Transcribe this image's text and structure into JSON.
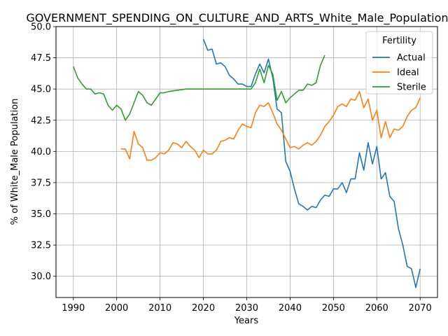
{
  "chart_data": {
    "type": "line",
    "title": "GOVERNMENT_SPENDING_ON_CULTURE_AND_ARTS_White_Male_Population_so",
    "xlabel": "Years",
    "ylabel": "% of White_Male Population",
    "xlim": [
      1986,
      2074
    ],
    "ylim": [
      28.3,
      50.0
    ],
    "xticks": [
      1990,
      2000,
      2010,
      2020,
      2030,
      2040,
      2050,
      2060,
      2070
    ],
    "yticks": [
      30.0,
      32.5,
      35.0,
      37.5,
      40.0,
      42.5,
      45.0,
      47.5,
      50.0
    ],
    "grid": true,
    "legend": {
      "title": "Fertility",
      "placement": "top-right"
    },
    "series": [
      {
        "name": "Actual",
        "color": "#1f77b4",
        "x": [
          2020,
          2021,
          2022,
          2023,
          2024,
          2025,
          2026,
          2027,
          2028,
          2029,
          2030,
          2031,
          2032,
          2033,
          2034,
          2035,
          2036,
          2037,
          2038,
          2039,
          2040,
          2041,
          2042,
          2043,
          2044,
          2045,
          2046,
          2047,
          2048,
          2049,
          2050,
          2051,
          2052,
          2053,
          2054,
          2055,
          2056,
          2057,
          2058,
          2059,
          2060,
          2061,
          2062,
          2063,
          2064,
          2065,
          2066,
          2067,
          2068,
          2069,
          2070
        ],
        "values": [
          49.0,
          48.1,
          48.2,
          47.0,
          47.1,
          46.8,
          46.1,
          45.8,
          45.4,
          45.4,
          45.2,
          45.2,
          46.2,
          47.0,
          46.3,
          47.4,
          45.9,
          43.4,
          43.1,
          39.2,
          38.4,
          37.0,
          35.8,
          35.6,
          35.3,
          35.6,
          35.5,
          36.1,
          36.5,
          36.4,
          37.0,
          37.0,
          37.5,
          36.7,
          37.8,
          37.8,
          39.9,
          38.5,
          40.7,
          39.0,
          40.4,
          37.8,
          38.3,
          36.4,
          36.0,
          33.8,
          32.5,
          30.8,
          30.6,
          29.1,
          30.6
        ]
      },
      {
        "name": "Ideal",
        "color": "#ff7f0e",
        "x": [
          2001,
          2002,
          2003,
          2004,
          2005,
          2006,
          2007,
          2008,
          2009,
          2010,
          2011,
          2012,
          2013,
          2014,
          2015,
          2016,
          2017,
          2018,
          2019,
          2020,
          2021,
          2022,
          2023,
          2024,
          2025,
          2026,
          2027,
          2028,
          2029,
          2030,
          2031,
          2032,
          2033,
          2034,
          2035,
          2036,
          2037,
          2038,
          2039,
          2040,
          2041,
          2042,
          2043,
          2044,
          2045,
          2046,
          2047,
          2048,
          2049,
          2050,
          2051,
          2052,
          2053,
          2054,
          2055,
          2056,
          2057,
          2058,
          2059,
          2060,
          2061,
          2062,
          2063,
          2064,
          2065,
          2066,
          2067,
          2068,
          2069,
          2070
        ],
        "values": [
          40.2,
          40.2,
          39.4,
          41.6,
          40.6,
          40.3,
          39.3,
          39.3,
          39.5,
          39.9,
          39.8,
          40.1,
          40.7,
          40.6,
          40.3,
          40.8,
          40.4,
          40.1,
          39.5,
          40.1,
          39.8,
          39.8,
          40.1,
          40.8,
          40.9,
          41.1,
          41.0,
          41.7,
          42.2,
          42.0,
          41.9,
          43.1,
          43.7,
          43.6,
          43.9,
          43.1,
          42.2,
          41.7,
          41.0,
          40.3,
          40.4,
          40.2,
          40.5,
          40.7,
          40.5,
          40.8,
          41.3,
          42.0,
          42.4,
          42.9,
          43.6,
          43.8,
          43.6,
          44.2,
          44.1,
          44.8,
          43.5,
          44.2,
          42.5,
          43.3,
          41.1,
          42.4,
          41.1,
          41.8,
          41.7,
          42.0,
          42.8,
          43.3,
          43.5,
          44.3
        ]
      },
      {
        "name": "Sterile",
        "color": "#2ca02c",
        "x": [
          1990,
          1991,
          1992,
          1993,
          1994,
          1995,
          1996,
          1997,
          1998,
          1999,
          2000,
          2001,
          2002,
          2003,
          2004,
          2005,
          2006,
          2007,
          2008,
          2009,
          2010,
          2011,
          2012,
          2013,
          2014,
          2015,
          2016,
          2017,
          2018,
          2019,
          2020,
          2021,
          2022,
          2023,
          2024,
          2025,
          2026,
          2027,
          2028,
          2029,
          2030,
          2031,
          2032,
          2033,
          2034,
          2035,
          2036,
          2037,
          2038,
          2039,
          2040,
          2041,
          2042,
          2043,
          2044,
          2045,
          2046,
          2047,
          2048
        ],
        "values": [
          46.8,
          45.9,
          45.4,
          45.0,
          45.0,
          44.6,
          44.7,
          44.6,
          43.7,
          43.3,
          43.7,
          43.4,
          42.5,
          43.0,
          43.9,
          44.8,
          44.5,
          43.9,
          43.7,
          44.2,
          44.7,
          44.7,
          44.8,
          44.85,
          44.9,
          44.95,
          45.0,
          45.0,
          45.0,
          45.0,
          45.0,
          45.0,
          45.0,
          45.0,
          45.0,
          45.0,
          45.0,
          45.0,
          45.0,
          45.0,
          45.0,
          45.0,
          45.5,
          46.6,
          45.5,
          46.9,
          46.2,
          44.1,
          44.8,
          43.9,
          44.3,
          44.6,
          44.9,
          44.9,
          45.4,
          45.3,
          45.5,
          46.9,
          47.7
        ]
      }
    ]
  }
}
